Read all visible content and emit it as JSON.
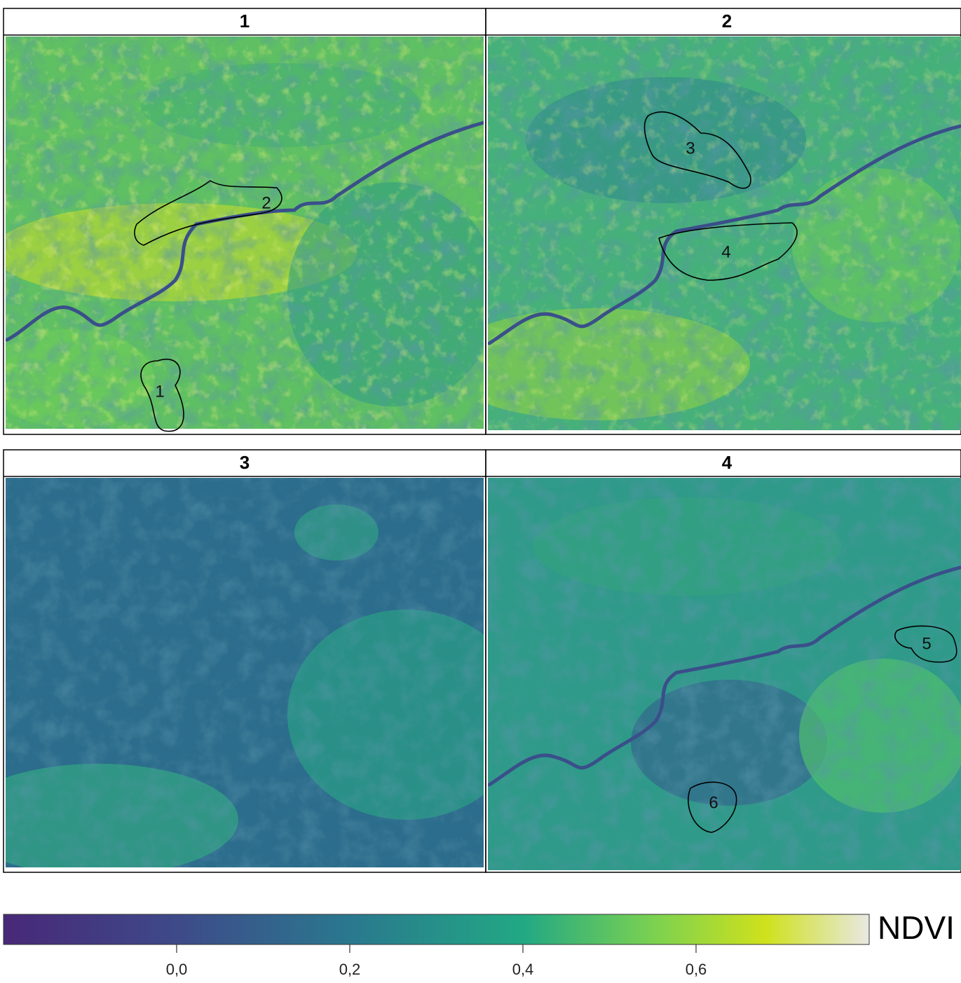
{
  "panels": [
    {
      "title": "1",
      "regions": [
        {
          "label": "1"
        },
        {
          "label": "2"
        }
      ]
    },
    {
      "title": "2",
      "regions": [
        {
          "label": "3"
        },
        {
          "label": "4"
        }
      ]
    },
    {
      "title": "3",
      "regions": []
    },
    {
      "title": "4",
      "regions": [
        {
          "label": "5"
        },
        {
          "label": "6"
        }
      ]
    }
  ],
  "colorbar": {
    "label": "NDVI",
    "lim": [
      -0.2,
      0.8
    ],
    "ticks": [
      {
        "value": 0,
        "label": "0,0"
      },
      {
        "value": 0.2,
        "label": "0,2"
      },
      {
        "value": 0.4,
        "label": "0,4"
      },
      {
        "value": 0.6,
        "label": "0,6"
      }
    ]
  }
}
